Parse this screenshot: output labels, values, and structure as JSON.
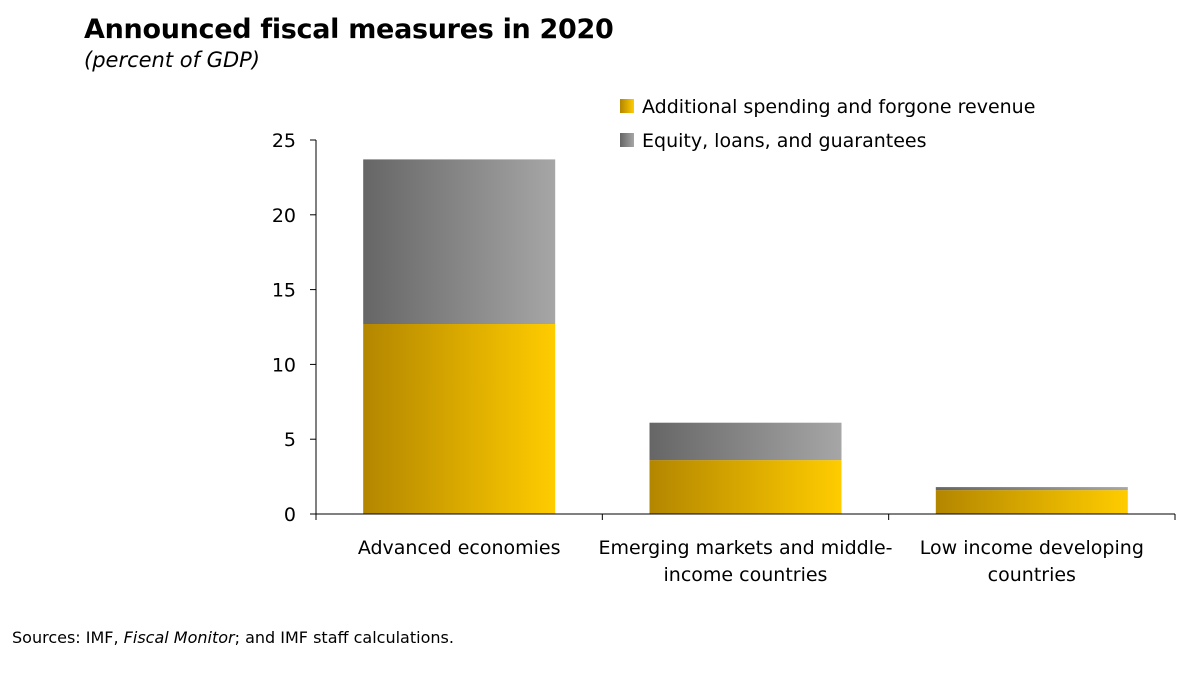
{
  "title": "Announced fiscal measures in 2020",
  "subtitle": "(percent of GDP)",
  "sources": {
    "prefix": "Sources: IMF, ",
    "italic": "Fiscal Monitor",
    "suffix": "; and IMF staff calculations."
  },
  "colors": {
    "spending_dark": "#b38600",
    "spending_light": "#ffcc00",
    "equity_dark": "#666666",
    "equity_light": "#a6a6a6",
    "axis": "#000000"
  },
  "chart_data": {
    "type": "bar",
    "stacked": true,
    "categories": [
      [
        "Advanced economies"
      ],
      [
        "Emerging markets and middle-",
        "income countries"
      ],
      [
        "Low income developing",
        "countries"
      ]
    ],
    "series": [
      {
        "name": "Additional spending and forgone revenue",
        "values": [
          12.7,
          3.6,
          1.6
        ],
        "color_key": "spending"
      },
      {
        "name": "Equity, loans, and guarantees",
        "values": [
          11.0,
          2.5,
          0.2
        ],
        "color_key": "equity"
      }
    ],
    "ylim": [
      0,
      25
    ],
    "yticks": [
      0,
      5,
      10,
      15,
      20,
      25
    ],
    "legend": "top-right",
    "grid": false
  }
}
